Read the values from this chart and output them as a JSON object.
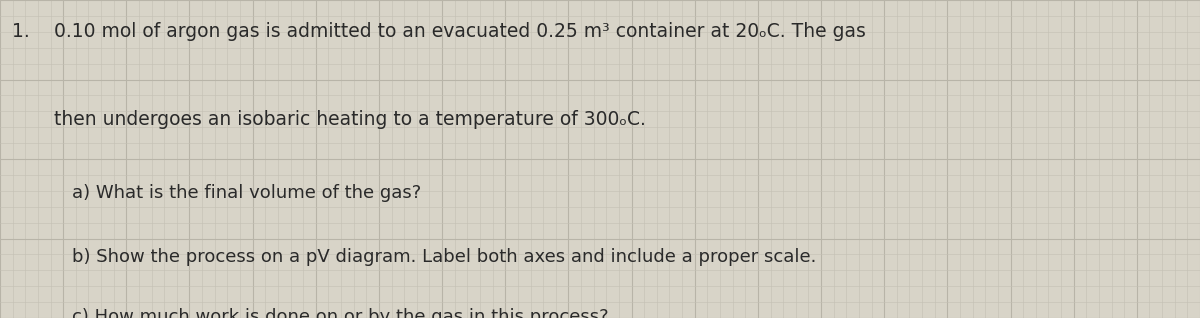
{
  "background_color": "#d8d4c8",
  "grid_color_light": "#c4c0b4",
  "grid_color_dark": "#b8b4a8",
  "text_color": "#2a2a2a",
  "number": "1.",
  "line1": "0.10 mol of argon gas is admitted to an evacuated 0.25 m³ container at 20ₒC. The gas",
  "line2": "then undergoes an isobaric heating to a temperature of 300ₒC.",
  "line_a": "a) What is the final volume of the gas?",
  "line_b": "b) Show the process on a pV diagram. Label both axes and include a proper scale.",
  "line_c": "c) How much work is done on or by the gas in this process?",
  "font_size_main": 13.5,
  "font_size_sub": 13.0,
  "n_cols": 95,
  "n_rows": 20
}
